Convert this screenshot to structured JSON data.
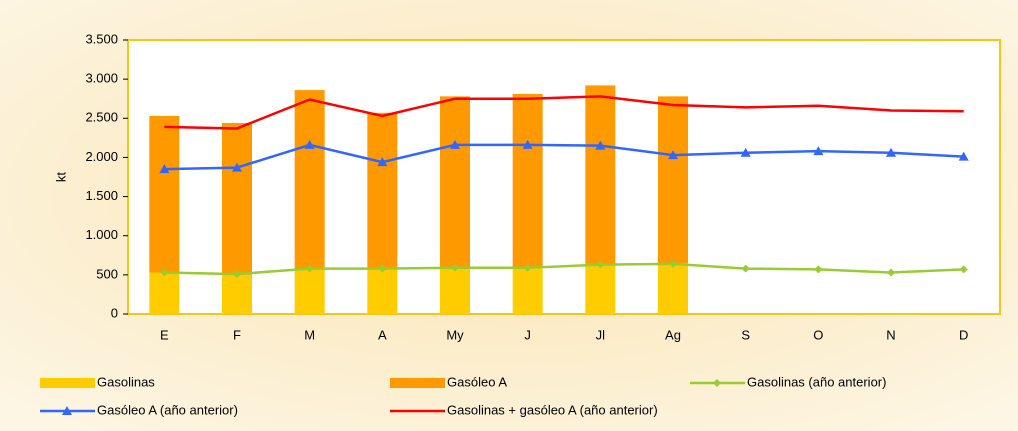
{
  "chart_data": {
    "type": "combo",
    "y_label": "kt",
    "categories": [
      "E",
      "F",
      "M",
      "A",
      "My",
      "J",
      "Jl",
      "Ag",
      "S",
      "O",
      "N",
      "D"
    ],
    "series": [
      {
        "name": "Gasolinas",
        "type": "bar",
        "color": "#ffcc00",
        "values": [
          530,
          500,
          580,
          570,
          590,
          590,
          640,
          650,
          null,
          null,
          null,
          null
        ]
      },
      {
        "name": "Gasóleo A",
        "type": "bar",
        "color": "#ff9900",
        "values": [
          2000,
          1940,
          2280,
          2000,
          2190,
          2220,
          2280,
          2130,
          null,
          null,
          null,
          null
        ]
      },
      {
        "name": "Gasolinas (año anterior)",
        "type": "line",
        "marker": "diamond",
        "color": "#99cc33",
        "values": [
          530,
          510,
          580,
          580,
          590,
          590,
          630,
          640,
          580,
          570,
          530,
          570
        ]
      },
      {
        "name": "Gasóleo A (año anterior)",
        "type": "line",
        "marker": "triangle",
        "color": "#3366ff",
        "values": [
          1850,
          1870,
          2160,
          1940,
          2160,
          2160,
          2150,
          2030,
          2060,
          2080,
          2060,
          2010
        ]
      },
      {
        "name": "Gasolinas + gasóleo A (año anterior)",
        "type": "line",
        "marker": "none",
        "color": "#ff0000",
        "values": [
          2390,
          2370,
          2740,
          2530,
          2750,
          2750,
          2780,
          2670,
          2640,
          2660,
          2600,
          2590
        ]
      }
    ],
    "ylim": [
      0,
      3500
    ],
    "yticks": [
      0,
      500,
      {
        "value": 1000,
        "label": "1.000"
      },
      {
        "value": 1500,
        "label": "1.500"
      },
      {
        "value": 2000,
        "label": "2.000"
      },
      {
        "value": 2500,
        "label": "2.500"
      },
      {
        "value": 3000,
        "label": "3.000"
      },
      {
        "value": 3500,
        "label": "3.500"
      }
    ],
    "legend": "bottom"
  }
}
